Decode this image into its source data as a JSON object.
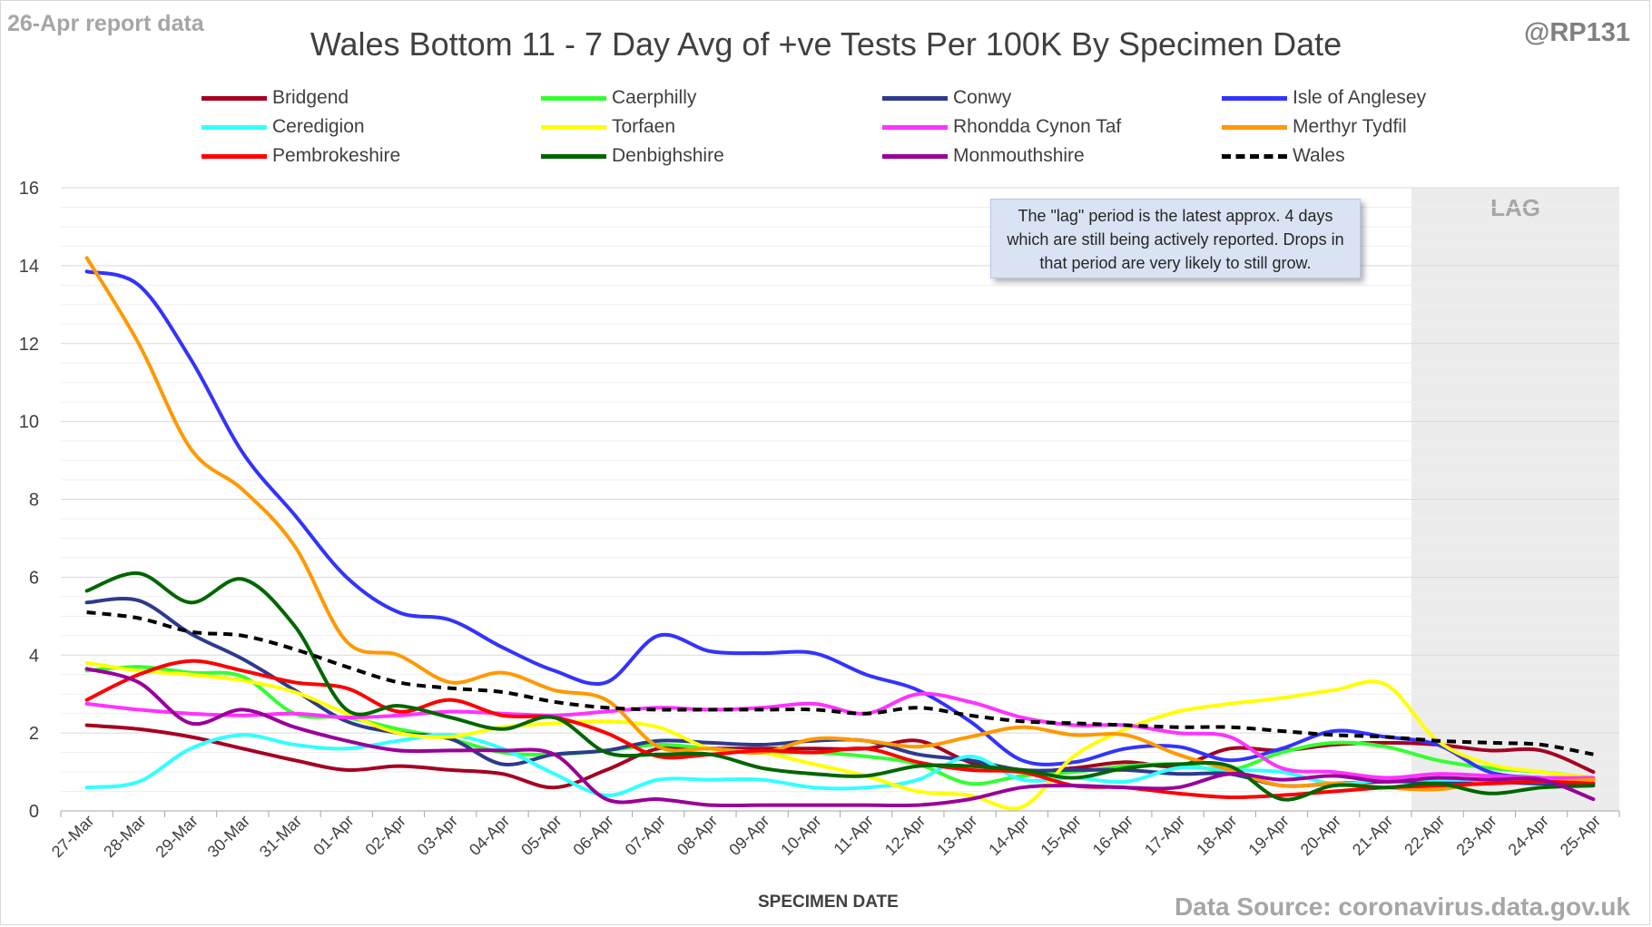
{
  "header": {
    "report_date": "26-Apr report data",
    "handle": "@RP131",
    "source": "Data Source: coronavirus.data.gov.uk"
  },
  "note": "The \"lag\" period is the latest approx. 4 days which are still being actively reported.  Drops in that period are very likely to still grow.",
  "chart_data": {
    "type": "line",
    "title": "Wales Bottom 11 - 7 Day Avg of +ve Tests Per 100K By Specimen Date",
    "xlabel": "SPECIMEN DATE",
    "ylabel": "",
    "ylim": [
      0,
      16
    ],
    "yticks": [
      0,
      2,
      4,
      6,
      8,
      10,
      12,
      14,
      16
    ],
    "grid": "horizontal",
    "legend_position": "top",
    "lag_label": "LAG",
    "lag_start": "22-Apr",
    "categories": [
      "27-Mar",
      "28-Mar",
      "29-Mar",
      "30-Mar",
      "31-Mar",
      "01-Apr",
      "02-Apr",
      "03-Apr",
      "04-Apr",
      "05-Apr",
      "06-Apr",
      "07-Apr",
      "08-Apr",
      "09-Apr",
      "10-Apr",
      "11-Apr",
      "12-Apr",
      "13-Apr",
      "14-Apr",
      "15-Apr",
      "16-Apr",
      "17-Apr",
      "18-Apr",
      "19-Apr",
      "20-Apr",
      "21-Apr",
      "22-Apr",
      "23-Apr",
      "24-Apr",
      "25-Apr"
    ],
    "series": [
      {
        "name": "Bridgend",
        "color": "#a50021",
        "dashed": false,
        "values": [
          2.2,
          2.1,
          1.9,
          1.6,
          1.3,
          1.05,
          1.15,
          1.05,
          0.95,
          0.6,
          1.05,
          1.6,
          1.6,
          1.6,
          1.6,
          1.6,
          1.8,
          1.25,
          1.0,
          1.1,
          1.25,
          1.15,
          1.6,
          1.55,
          1.7,
          1.75,
          1.7,
          1.55,
          1.55,
          1.0
        ]
      },
      {
        "name": "Caerphilly",
        "color": "#33ff33",
        "dashed": false,
        "values": [
          3.6,
          3.7,
          3.55,
          3.45,
          2.5,
          2.4,
          2.1,
          1.85,
          1.5,
          1.45,
          1.55,
          1.7,
          1.6,
          1.5,
          1.5,
          1.4,
          1.2,
          0.7,
          0.9,
          1.0,
          1.15,
          1.2,
          1.05,
          1.5,
          1.75,
          1.65,
          1.3,
          1.1,
          1.0,
          0.85
        ]
      },
      {
        "name": "Conwy",
        "color": "#2e3a8c",
        "dashed": false,
        "values": [
          5.35,
          5.4,
          4.55,
          3.9,
          3.1,
          2.3,
          2.0,
          1.85,
          1.2,
          1.45,
          1.55,
          1.8,
          1.75,
          1.7,
          1.8,
          1.8,
          1.45,
          1.3,
          1.05,
          1.05,
          1.05,
          0.95,
          0.95,
          0.65,
          0.7,
          0.75,
          0.75,
          0.75,
          0.7,
          0.7
        ]
      },
      {
        "name": "Isle of Anglesey",
        "color": "#3333ff",
        "dashed": false,
        "values": [
          13.85,
          13.5,
          11.6,
          9.2,
          7.6,
          6.0,
          5.1,
          4.9,
          4.2,
          3.6,
          3.3,
          4.5,
          4.1,
          4.05,
          4.05,
          3.5,
          3.1,
          2.3,
          1.3,
          1.25,
          1.6,
          1.65,
          1.3,
          1.6,
          2.05,
          1.9,
          1.7,
          1.0,
          0.85,
          0.8
        ]
      },
      {
        "name": "Ceredigion",
        "color": "#33ffff",
        "dashed": false,
        "values": [
          0.6,
          0.75,
          1.6,
          1.95,
          1.7,
          1.6,
          1.8,
          1.95,
          1.6,
          0.95,
          0.4,
          0.8,
          0.8,
          0.8,
          0.6,
          0.6,
          0.8,
          1.4,
          0.8,
          0.85,
          0.75,
          1.1,
          1.05,
          1.0,
          0.7,
          0.8,
          0.8,
          0.8,
          0.85,
          0.85
        ]
      },
      {
        "name": "Torfaen",
        "color": "#ffff00",
        "dashed": false,
        "values": [
          3.8,
          3.6,
          3.5,
          3.35,
          3.05,
          2.5,
          2.0,
          1.9,
          2.15,
          2.25,
          2.3,
          2.15,
          1.6,
          1.5,
          1.2,
          0.9,
          0.5,
          0.4,
          0.1,
          1.4,
          2.1,
          2.55,
          2.75,
          2.9,
          3.1,
          3.25,
          1.8,
          1.2,
          1.0,
          0.85
        ]
      },
      {
        "name": "Rhondda Cynon Taf",
        "color": "#ff33ff",
        "dashed": false,
        "values": [
          2.75,
          2.6,
          2.5,
          2.45,
          2.5,
          2.4,
          2.45,
          2.55,
          2.5,
          2.45,
          2.55,
          2.65,
          2.6,
          2.65,
          2.75,
          2.5,
          3.0,
          2.8,
          2.4,
          2.2,
          2.2,
          2.0,
          1.9,
          1.1,
          1.0,
          0.85,
          0.95,
          0.9,
          0.85,
          0.85
        ]
      },
      {
        "name": "Merthyr Tydfil",
        "color": "#ff9900",
        "dashed": false,
        "values": [
          14.2,
          12.0,
          9.3,
          8.25,
          6.8,
          4.35,
          4.0,
          3.3,
          3.55,
          3.1,
          2.85,
          1.65,
          1.6,
          1.5,
          1.85,
          1.8,
          1.65,
          1.9,
          2.15,
          1.95,
          1.95,
          1.45,
          1.05,
          0.65,
          0.7,
          0.6,
          0.55,
          0.75,
          0.75,
          0.8
        ]
      },
      {
        "name": "Pembrokeshire",
        "color": "#ff0000",
        "dashed": false,
        "values": [
          2.85,
          3.5,
          3.85,
          3.6,
          3.3,
          3.15,
          2.55,
          2.85,
          2.45,
          2.4,
          2.0,
          1.4,
          1.45,
          1.55,
          1.5,
          1.6,
          1.25,
          1.05,
          1.0,
          0.65,
          0.6,
          0.45,
          0.35,
          0.4,
          0.5,
          0.6,
          0.65,
          0.7,
          0.75,
          0.7
        ]
      },
      {
        "name": "Denbighshire",
        "color": "#006600",
        "dashed": false,
        "values": [
          5.65,
          6.1,
          5.35,
          5.95,
          4.75,
          2.6,
          2.7,
          2.4,
          2.1,
          2.4,
          1.5,
          1.45,
          1.45,
          1.1,
          0.95,
          0.9,
          1.15,
          1.15,
          1.05,
          0.85,
          1.1,
          1.2,
          1.15,
          0.3,
          0.65,
          0.6,
          0.7,
          0.45,
          0.6,
          0.65
        ]
      },
      {
        "name": "Monmouthshire",
        "color": "#990099",
        "dashed": false,
        "values": [
          3.65,
          3.3,
          2.25,
          2.6,
          2.15,
          1.8,
          1.55,
          1.55,
          1.55,
          1.45,
          0.3,
          0.3,
          0.15,
          0.15,
          0.15,
          0.15,
          0.15,
          0.3,
          0.6,
          0.65,
          0.6,
          0.6,
          0.95,
          0.8,
          0.9,
          0.75,
          0.85,
          0.8,
          0.8,
          0.3
        ]
      },
      {
        "name": "Wales",
        "color": "#000000",
        "dashed": true,
        "values": [
          5.1,
          4.95,
          4.6,
          4.5,
          4.15,
          3.7,
          3.3,
          3.15,
          3.05,
          2.8,
          2.65,
          2.6,
          2.6,
          2.6,
          2.6,
          2.5,
          2.65,
          2.45,
          2.3,
          2.25,
          2.2,
          2.15,
          2.15,
          2.05,
          1.95,
          1.9,
          1.8,
          1.75,
          1.7,
          1.45
        ]
      }
    ]
  }
}
